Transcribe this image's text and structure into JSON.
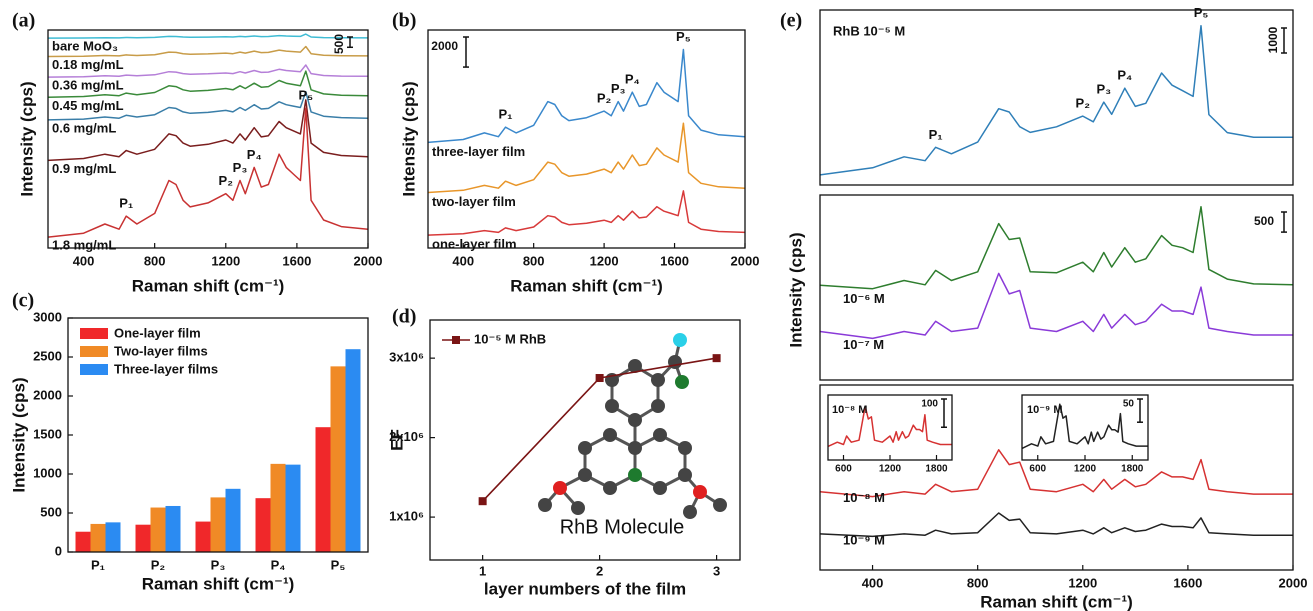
{
  "chart_data": [
    {
      "type": "line",
      "panel_label": "(a)",
      "xlabel": "Raman shift (cm⁻¹)",
      "ylabel": "Intensity (cps)",
      "x": [
        200,
        400,
        520,
        600,
        640,
        700,
        800,
        880,
        920,
        960,
        1000,
        1100,
        1200,
        1240,
        1280,
        1310,
        1360,
        1400,
        1440,
        1500,
        1540,
        1580,
        1620,
        1650,
        1680,
        1750,
        1850,
        2000
      ],
      "xlim": [
        200,
        2000
      ],
      "xticks": [
        400,
        800,
        1200,
        1600,
        2000
      ],
      "ylim": [
        0,
        10600
      ],
      "scale_bar": 500,
      "peak_labels": [
        "P₁",
        "P₂",
        "P₃",
        "P₄",
        "P₅"
      ],
      "series": [
        {
          "name": "bare MoO₃",
          "color": "#3fbcd4",
          "values": [
            10204,
            10210,
            10224,
            10216,
            10236,
            10224,
            10240,
            10290,
            10284,
            10260,
            10250,
            10256,
            10270,
            10260,
            10290,
            10270,
            10310,
            10280,
            10284,
            10330,
            10310,
            10300,
            10290,
            10400,
            10260,
            10230,
            10220,
            10216
          ]
        },
        {
          "name": "0.18 mg/mL",
          "color": "#c89c48",
          "values": [
            9310,
            9325,
            9360,
            9340,
            9390,
            9360,
            9400,
            9525,
            9510,
            9450,
            9425,
            9440,
            9475,
            9450,
            9525,
            9475,
            9575,
            9500,
            9510,
            9625,
            9575,
            9550,
            9525,
            9800,
            9450,
            9375,
            9350,
            9340
          ]
        },
        {
          "name": "0.36 mg/mL",
          "color": "#b57fd8",
          "values": [
            8312,
            8330,
            8372,
            8348,
            8408,
            8372,
            8420,
            8570,
            8552,
            8480,
            8450,
            8468,
            8510,
            8480,
            8570,
            8510,
            8630,
            8540,
            8552,
            8690,
            8630,
            8600,
            8570,
            8900,
            8480,
            8390,
            8360,
            8348
          ]
        },
        {
          "name": "0.45 mg/mL",
          "color": "#3a8a3a",
          "values": [
            7326,
            7365,
            7456,
            7404,
            7534,
            7456,
            7560,
            7885,
            7846,
            7690,
            7625,
            7664,
            7755,
            7690,
            7885,
            7755,
            8015,
            7820,
            7846,
            8145,
            8015,
            7950,
            7885,
            8600,
            7690,
            7495,
            7430,
            7404
          ]
        },
        {
          "name": "0.6 mg/mL",
          "color": "#3a7ea8",
          "values": [
            6228,
            6270,
            6368,
            6312,
            6452,
            6368,
            6480,
            6830,
            6788,
            6620,
            6550,
            6592,
            6690,
            6620,
            6830,
            6690,
            6970,
            6760,
            6788,
            7110,
            6970,
            6900,
            6830,
            7600,
            6620,
            6410,
            6340,
            6312
          ]
        },
        {
          "name": "0.9 mg/mL",
          "color": "#7a1e1e",
          "values": [
            4260,
            4350,
            4560,
            4440,
            4740,
            4560,
            4800,
            5550,
            5460,
            5100,
            4950,
            5040,
            5250,
            5100,
            5550,
            5250,
            5850,
            5400,
            5460,
            6150,
            5850,
            5700,
            5550,
            7200,
            5100,
            4650,
            4500,
            4440
          ]
        },
        {
          "name": "1.8 mg/mL",
          "color": "#c83232",
          "values": [
            528,
            720,
            1168,
            912,
            1552,
            1168,
            1680,
            3280,
            3088,
            2320,
            2000,
            2192,
            2640,
            2320,
            3280,
            2640,
            3920,
            2960,
            3088,
            4560,
            3920,
            3600,
            3280,
            6800,
            2320,
            1360,
            1040,
            912
          ]
        }
      ]
    },
    {
      "type": "line",
      "panel_label": "(b)",
      "xlabel": "Raman shift (cm⁻¹)",
      "ylabel": "Intensity (cps)",
      "x": [
        200,
        400,
        520,
        600,
        640,
        700,
        800,
        880,
        920,
        960,
        1000,
        1100,
        1200,
        1240,
        1280,
        1310,
        1360,
        1400,
        1440,
        1500,
        1540,
        1580,
        1620,
        1650,
        1680,
        1750,
        1850,
        2000
      ],
      "xlim": [
        200,
        2000
      ],
      "xticks": [
        400,
        800,
        1200,
        1600,
        2000
      ],
      "ylim": [
        0,
        14500
      ],
      "scale_bar": 2000,
      "peak_labels": [
        "P₁",
        "P₂",
        "P₃",
        "P₄",
        "P₅"
      ],
      "series": [
        {
          "name": "one-layer film",
          "color": "#d83a3a",
          "values": [
            860,
            950,
            1160,
            1040,
            1340,
            1160,
            1400,
            2150,
            2060,
            1700,
            1550,
            1640,
            1850,
            1700,
            2150,
            1850,
            2450,
            2000,
            2060,
            2750,
            2450,
            2300,
            2150,
            3800,
            1700,
            1250,
            1100,
            1040
          ]
        },
        {
          "name": "two-layer film",
          "color": "#e8962a",
          "values": [
            3694,
            3835,
            4164,
            3976,
            4446,
            4164,
            4540,
            5715,
            5574,
            5010,
            4775,
            4916,
            5245,
            5010,
            5715,
            5245,
            6185,
            5480,
            5574,
            6655,
            6185,
            5950,
            5715,
            8300,
            5010,
            4305,
            4070,
            3976
          ]
        },
        {
          "name": "three-layer film",
          "color": "#3a88cc",
          "values": [
            7026,
            7215,
            7656,
            7404,
            8034,
            7656,
            8160,
            9735,
            9546,
            8790,
            8475,
            8664,
            9105,
            8790,
            9735,
            9105,
            10365,
            9420,
            9546,
            10995,
            10365,
            10050,
            9735,
            13200,
            8790,
            7845,
            7530,
            7404
          ]
        }
      ]
    },
    {
      "type": "bar",
      "panel_label": "(c)",
      "xlabel": "Raman shift (cm⁻¹)",
      "ylabel": "Intensity (cps)",
      "categories": [
        "P₁",
        "P₂",
        "P₃",
        "P₄",
        "P₅"
      ],
      "ylim": [
        0,
        3000
      ],
      "yticks": [
        0,
        500,
        1000,
        1500,
        2000,
        2500,
        3000
      ],
      "legend": "upper left",
      "series": [
        {
          "name": "One-layer film",
          "color": "#f0282a",
          "values": [
            260,
            350,
            390,
            690,
            1600
          ]
        },
        {
          "name": "Two-layer films",
          "color": "#f08a26",
          "values": [
            360,
            570,
            700,
            1130,
            2380
          ]
        },
        {
          "name": "Three-layer films",
          "color": "#2b8bf2",
          "values": [
            380,
            590,
            810,
            1120,
            2600
          ]
        }
      ]
    },
    {
      "type": "line",
      "panel_label": "(d)",
      "xlabel": "layer numbers of the film",
      "ylabel": "EF",
      "annotation": "RhB Molecule",
      "x": [
        1,
        2,
        3
      ],
      "xlim": [
        0.55,
        3.2
      ],
      "xticks": [
        1,
        2,
        3
      ],
      "ylim": [
        460000,
        3480000
      ],
      "yticks": [
        {
          "value": 1000000,
          "label": "1x10⁶"
        },
        {
          "value": 2000000,
          "label": "2x10⁶"
        },
        {
          "value": 3000000,
          "label": "3x10⁶"
        }
      ],
      "marker": "square",
      "legend": "upper left",
      "series": [
        {
          "name": "10⁻⁵ M RhB",
          "color": "#7a1414",
          "values": [
            1200000,
            2750000,
            3000000
          ]
        }
      ]
    },
    {
      "type": "line",
      "panel_label": "(e)",
      "x": [
        200,
        400,
        520,
        600,
        640,
        700,
        800,
        880,
        920,
        960,
        1000,
        1100,
        1200,
        1240,
        1280,
        1310,
        1360,
        1400,
        1440,
        1500,
        1540,
        1580,
        1620,
        1650,
        1680,
        1750,
        1850,
        2000
      ],
      "xlim": [
        200,
        2000
      ],
      "ylim": [
        0,
        7000
      ],
      "scale_bar": 1000,
      "peak_labels": [
        "P₁",
        "P₂",
        "P₃",
        "P₄",
        "P₅"
      ],
      "series": [
        {
          "name": "RhB 10⁻⁵ M",
          "color": "#2f7fb8",
          "values": [
            402,
            687,
            1128,
            972,
            1506,
            1248,
            1716,
            3051,
            2922,
            2334,
            2103,
            2328,
            2757,
            2526,
            3315,
            2829,
            3873,
            3144,
            3270,
            4479,
            3993,
            3774,
            3543,
            6372,
            2814,
            2097,
            1914,
            1908
          ]
        }
      ]
    },
    {
      "type": "line",
      "ylabel": "Intensity (cps)",
      "x": [
        200,
        400,
        520,
        600,
        640,
        700,
        800,
        880,
        920,
        960,
        1000,
        1100,
        1200,
        1240,
        1280,
        1310,
        1360,
        1400,
        1440,
        1500,
        1540,
        1580,
        1620,
        1650,
        1680,
        1750,
        1850,
        2000
      ],
      "xlim": [
        200,
        2000
      ],
      "ylim": [
        0,
        4600
      ],
      "scale_bar": 500,
      "series": [
        {
          "name": "10⁻⁶ M",
          "color": "#2e7d2e",
          "values": [
            2354,
            2270,
            2474,
            2366,
            2726,
            2474,
            2690,
            3890,
            3494,
            3530,
            2690,
            2666,
            2930,
            2690,
            3170,
            2810,
            3290,
            2930,
            3014,
            3590,
            3350,
            3290,
            3170,
            4310,
            2750,
            2510,
            2390,
            2366
          ]
        },
        {
          "name": "10⁻⁷ M",
          "color": "#8a3ad8",
          "values": [
            1205,
            1035,
            1205,
            1120,
            1460,
            1205,
            1290,
            2650,
            2140,
            2225,
            1290,
            1205,
            1460,
            1205,
            1630,
            1290,
            1630,
            1375,
            1460,
            1885,
            1715,
            1715,
            1630,
            2310,
            1290,
            1205,
            1120,
            1120
          ]
        }
      ]
    },
    {
      "type": "line",
      "xlabel": "Raman shift (cm⁻¹)",
      "x": [
        200,
        400,
        520,
        600,
        640,
        700,
        800,
        880,
        920,
        960,
        1000,
        1100,
        1200,
        1240,
        1280,
        1310,
        1360,
        1400,
        1440,
        1500,
        1540,
        1580,
        1620,
        1650,
        1680,
        1750,
        1850,
        2000
      ],
      "xlim": [
        200,
        2000
      ],
      "xticks": [
        400,
        800,
        1200,
        1600,
        2000
      ],
      "ylim": [
        0,
        600
      ],
      "series": [
        {
          "name": "10⁻⁸ M",
          "color": "#d63232",
          "values": [
            254,
            238,
            254,
            246,
            278,
            254,
            262,
            390,
            342,
            350,
            262,
            254,
            278,
            254,
            294,
            262,
            294,
            270,
            278,
            318,
            302,
            302,
            294,
            358,
            262,
            254,
            246,
            246
          ]
        },
        {
          "name": "10⁻⁹ M",
          "color": "#222222",
          "values": [
            117,
            109,
            117,
            113,
            129,
            117,
            121,
            185,
            161,
            165,
            121,
            117,
            129,
            117,
            137,
            121,
            137,
            125,
            129,
            149,
            141,
            141,
            137,
            169,
            121,
            117,
            113,
            113
          ]
        }
      ]
    },
    {
      "type": "line",
      "x": [
        200,
        400,
        520,
        600,
        640,
        700,
        800,
        880,
        920,
        960,
        1000,
        1100,
        1200,
        1240,
        1280,
        1310,
        1360,
        1400,
        1440,
        1500,
        1540,
        1580,
        1620,
        1650,
        1680,
        1750,
        1850,
        2000
      ],
      "xlim": [
        400,
        2000
      ],
      "xticks": [
        600,
        1200,
        1800
      ],
      "ylim": [
        0,
        230
      ],
      "scale_bar": 100,
      "series": [
        {
          "name": "10⁻⁸ M",
          "color": "#d63232",
          "values": [
            63,
            48,
            63,
            55,
            85,
            63,
            70,
            190,
            145,
            153,
            70,
            63,
            85,
            63,
            100,
            70,
            100,
            78,
            85,
            123,
            108,
            108,
            100,
            160,
            70,
            63,
            55,
            55
          ]
        }
      ]
    },
    {
      "type": "line",
      "x": [
        200,
        400,
        520,
        600,
        640,
        700,
        800,
        880,
        920,
        960,
        1000,
        1100,
        1200,
        1240,
        1280,
        1310,
        1360,
        1400,
        1440,
        1500,
        1540,
        1580,
        1620,
        1650,
        1680,
        1750,
        1850,
        2000
      ],
      "xlim": [
        400,
        2000
      ],
      "xticks": [
        600,
        1200,
        1800
      ],
      "ylim": [
        0,
        140
      ],
      "scale_bar": 50,
      "series": [
        {
          "name": "10⁻⁹ M",
          "color": "#222222",
          "values": [
            35,
            25,
            35,
            30,
            50,
            35,
            40,
            120,
            90,
            95,
            40,
            35,
            50,
            35,
            60,
            40,
            60,
            45,
            50,
            75,
            65,
            65,
            60,
            100,
            40,
            35,
            30,
            30
          ]
        }
      ]
    }
  ]
}
